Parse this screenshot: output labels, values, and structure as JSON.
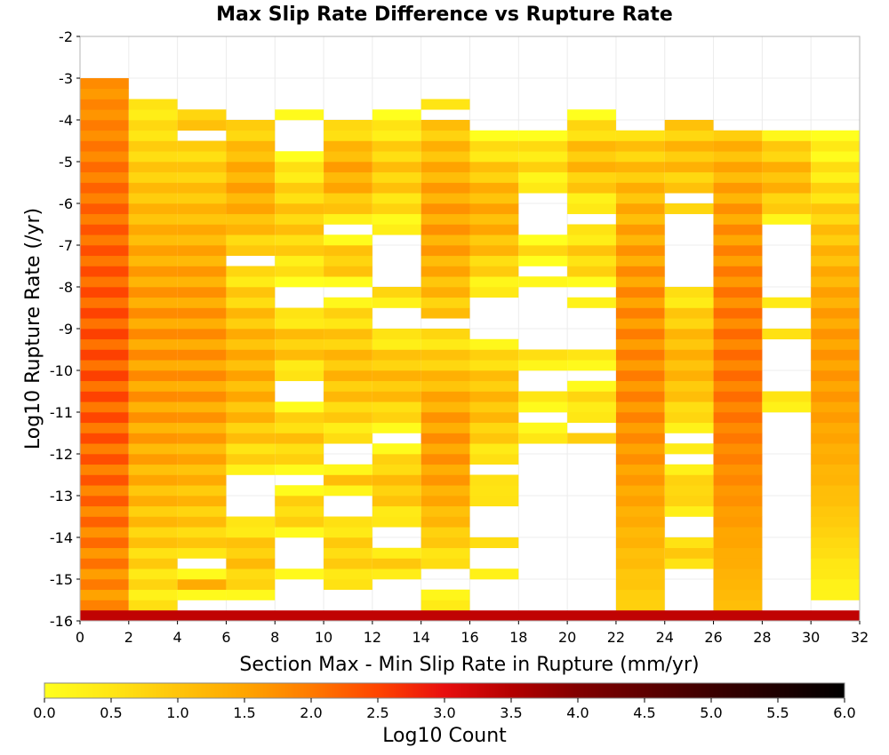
{
  "chart_data": {
    "type": "heatmap",
    "title": "Max Slip Rate Difference vs Rupture Rate",
    "xlabel": "Section Max - Min Slip Rate in Rupture (mm/yr)",
    "ylabel": "Log10 Rupture Rate (/yr)",
    "xlim": [
      0,
      32
    ],
    "ylim": [
      -16,
      -2
    ],
    "x_bin_width": 2,
    "y_bin_height": 0.25,
    "x_ticks": [
      "0",
      "2",
      "4",
      "6",
      "8",
      "10",
      "12",
      "14",
      "16",
      "18",
      "20",
      "22",
      "24",
      "26",
      "28",
      "30",
      "32"
    ],
    "y_ticks": [
      "-2",
      "-3",
      "-4",
      "-5",
      "-6",
      "-7",
      "-8",
      "-9",
      "-10",
      "-11",
      "-12",
      "-13",
      "-14",
      "-15",
      "-16"
    ],
    "grid": true,
    "colorbar": {
      "label": "Log10 Count",
      "range": [
        0,
        6
      ],
      "ticks": [
        "0.0",
        "0.5",
        "1.0",
        "1.5",
        "2.0",
        "2.5",
        "3.0",
        "3.5",
        "4.0",
        "4.5",
        "5.0",
        "5.5",
        "6.0"
      ],
      "stops": [
        {
          "value": 0.0,
          "color": "#ffff1e"
        },
        {
          "value": 0.5,
          "color": "#ffe614"
        },
        {
          "value": 1.0,
          "color": "#ffc40a"
        },
        {
          "value": 1.5,
          "color": "#ffa500"
        },
        {
          "value": 2.0,
          "color": "#ff7a00"
        },
        {
          "value": 2.5,
          "color": "#ff4400"
        },
        {
          "value": 3.0,
          "color": "#e80e0e"
        },
        {
          "value": 3.5,
          "color": "#b40000"
        },
        {
          "value": 4.0,
          "color": "#820000"
        },
        {
          "value": 5.0,
          "color": "#3c0000"
        },
        {
          "value": 6.0,
          "color": "#000000"
        }
      ]
    },
    "columns": [
      {
        "x": [
          0,
          2
        ],
        "segments": [
          [
            -15.75,
            -3.0,
            1.7,
            2.3
          ]
        ]
      },
      {
        "x": [
          2,
          4
        ],
        "segments": [
          [
            -15.75,
            -3.5,
            0.4,
            1.6
          ]
        ]
      },
      {
        "x": [
          4,
          6
        ],
        "segments": [
          [
            -15.5,
            -14.75,
            0.3,
            1.2
          ],
          [
            -14.5,
            -4.5,
            0.7,
            1.6
          ],
          [
            -4.25,
            -3.75,
            0.9,
            1.1
          ]
        ]
      },
      {
        "x": [
          6,
          8
        ],
        "segments": [
          [
            -15.5,
            -13.5,
            0.3,
            1.0
          ],
          [
            -12.5,
            -7.5,
            0.5,
            1.3
          ],
          [
            -7.25,
            -4.0,
            0.7,
            1.4
          ]
        ]
      },
      {
        "x": [
          8,
          10
        ],
        "segments": [
          [
            -15.0,
            -14.75,
            0.3,
            0.5
          ],
          [
            -14.0,
            -12.75,
            0.3,
            0.8
          ],
          [
            -12.5,
            -10.75,
            0.3,
            0.9
          ],
          [
            -10.25,
            -8.5,
            0.3,
            1.0
          ],
          [
            -8.0,
            -4.75,
            0.2,
            0.9
          ],
          [
            -4.0,
            -3.75,
            0.3,
            0.5
          ]
        ]
      },
      {
        "x": [
          10,
          12
        ],
        "segments": [
          [
            -15.25,
            -13.5,
            0.4,
            0.8
          ],
          [
            -13.0,
            -12.25,
            0.4,
            0.9
          ],
          [
            -11.75,
            -8.25,
            0.4,
            1.1
          ],
          [
            -8.0,
            -6.75,
            0.3,
            1.0
          ],
          [
            -6.5,
            -4.0,
            0.5,
            1.4
          ]
        ]
      },
      {
        "x": [
          12,
          14
        ],
        "segments": [
          [
            -15.0,
            -14.25,
            0.5,
            0.8
          ],
          [
            -13.75,
            -11.75,
            0.3,
            1.0
          ],
          [
            -11.5,
            -9.0,
            0.3,
            1.1
          ],
          [
            -8.5,
            -8.0,
            0.5,
            0.7
          ],
          [
            -6.75,
            -3.75,
            0.1,
            0.9
          ]
        ]
      },
      {
        "x": [
          14,
          16
        ],
        "segments": [
          [
            -15.75,
            -15.25,
            0.3,
            0.8
          ],
          [
            -14.75,
            -9.0,
            0.5,
            1.6
          ],
          [
            -8.75,
            -4.0,
            0.9,
            1.5
          ],
          [
            -3.75,
            -3.5,
            0.3,
            0.3
          ]
        ]
      },
      {
        "x": [
          16,
          18
        ],
        "segments": [
          [
            -15.0,
            -14.75,
            0.4,
            0.5
          ],
          [
            -14.25,
            -14.0,
            0.5,
            0.5
          ],
          [
            -13.25,
            -12.5,
            0.4,
            0.7
          ],
          [
            -12.25,
            -9.25,
            0.4,
            1.1
          ],
          [
            -8.25,
            -4.25,
            0.2,
            1.3
          ]
        ]
      },
      {
        "x": [
          18,
          20
        ],
        "segments": [
          [
            -11.75,
            -11.25,
            0.3,
            0.6
          ],
          [
            -11.0,
            -10.5,
            0.3,
            0.5
          ],
          [
            -10.0,
            -9.5,
            0.4,
            0.5
          ],
          [
            -8.0,
            -7.75,
            0.4,
            0.5
          ],
          [
            -7.5,
            -6.75,
            0.1,
            0.5
          ],
          [
            -5.75,
            -4.25,
            0.2,
            0.6
          ]
        ]
      },
      {
        "x": [
          20,
          22
        ],
        "segments": [
          [
            -11.75,
            -11.5,
            0.7,
            0.7
          ],
          [
            -11.25,
            -10.25,
            0.3,
            0.6
          ],
          [
            -10.0,
            -9.5,
            0.3,
            0.8
          ],
          [
            -8.5,
            -8.25,
            0.5,
            0.5
          ],
          [
            -8.0,
            -6.5,
            0.3,
            0.8
          ],
          [
            -6.25,
            -3.75,
            0.2,
            1.1
          ]
        ]
      },
      {
        "x": [
          22,
          24
        ],
        "segments": [
          [
            -15.75,
            -4.25,
            0.8,
            1.8
          ]
        ]
      },
      {
        "x": [
          24,
          26
        ],
        "segments": [
          [
            -14.75,
            -14.0,
            0.5,
            1.0
          ],
          [
            -13.5,
            -12.25,
            0.4,
            0.8
          ],
          [
            -12.0,
            -11.75,
            0.5,
            0.5
          ],
          [
            -11.5,
            -8.0,
            0.4,
            1.2
          ],
          [
            -6.25,
            -6.0,
            0.5,
            0.5
          ],
          [
            -5.75,
            -4.0,
            0.8,
            1.1
          ]
        ]
      },
      {
        "x": [
          26,
          28
        ],
        "segments": [
          [
            -15.75,
            -4.25,
            1.1,
            2.0
          ]
        ]
      },
      {
        "x": [
          28,
          30
        ],
        "segments": [
          [
            -11.0,
            -10.5,
            0.4,
            0.6
          ],
          [
            -9.25,
            -9.0,
            0.4,
            0.6
          ],
          [
            -8.5,
            -8.25,
            0.6,
            0.6
          ],
          [
            -6.5,
            -4.25,
            0.4,
            1.2
          ]
        ]
      },
      {
        "x": [
          30,
          32
        ],
        "segments": [
          [
            -15.5,
            -4.5,
            0.2,
            1.6
          ],
          [
            -4.5,
            -4.25,
            0.1,
            0.1
          ]
        ]
      },
      {
        "x": [
          0,
          32
        ],
        "segments": [
          [
            -16.0,
            -15.75,
            3.6,
            4.6
          ]
        ]
      }
    ]
  }
}
